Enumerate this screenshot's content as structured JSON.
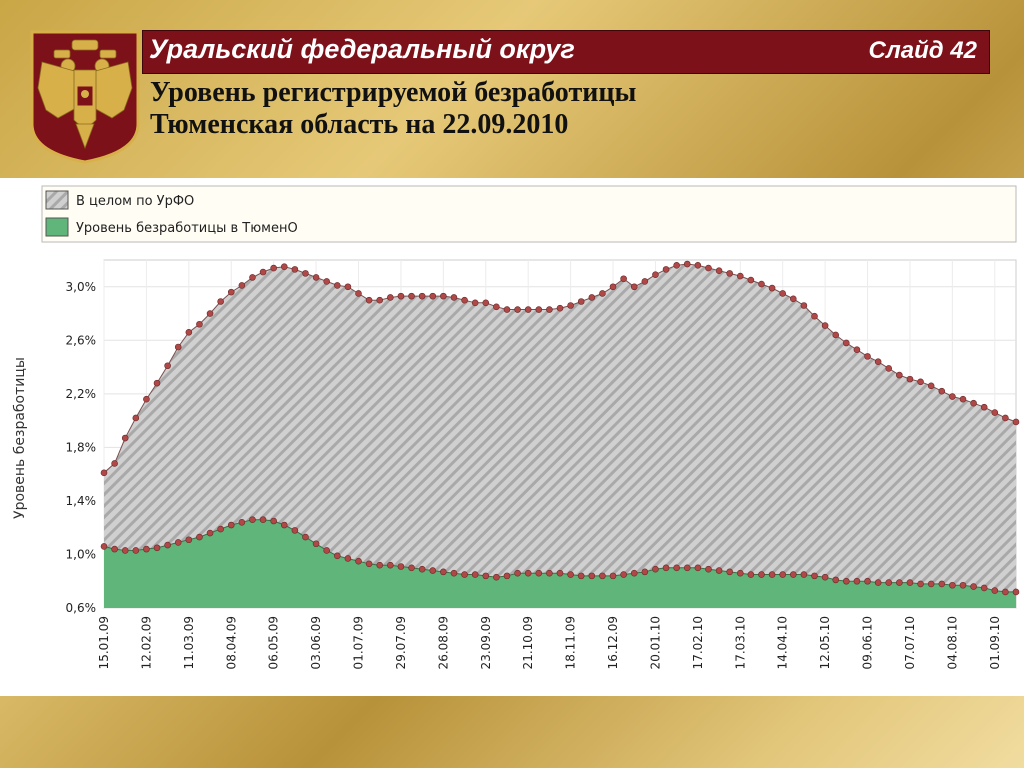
{
  "header": {
    "region_title": "Уральский федеральный округ",
    "slide_label": "Слайд 42",
    "subtitle_line1": "Уровень регистрируемой безработицы",
    "subtitle_line2": "Тюменская область на 22.09.2010"
  },
  "emblem": {
    "icon": "russian-coat-of-arms-icon",
    "background": "#7c1119",
    "foreground": "#d8b04a"
  },
  "colors": {
    "header_bar": "#7c1119",
    "urfo_fill": "#c8c8c8",
    "tyumen_fill": "#5fb57a",
    "marker": "#b04848"
  },
  "chart_data": {
    "type": "area",
    "ylabel": "Уровень безработицы",
    "ylim": [
      0.6,
      3.2
    ],
    "yticks": [
      "3,0%",
      "2,6%",
      "2,2%",
      "1,8%",
      "1,4%",
      "1,0%",
      "0,6%"
    ],
    "ytick_values": [
      3.0,
      2.6,
      2.2,
      1.8,
      1.4,
      1.0,
      0.6
    ],
    "x_tick_labels": [
      "15.01.09",
      "12.02.09",
      "11.03.09",
      "08.04.09",
      "06.05.09",
      "03.06.09",
      "01.07.09",
      "29.07.09",
      "26.08.09",
      "23.09.09",
      "21.10.09",
      "18.11.09",
      "16.12.09",
      "20.01.10",
      "17.02.10",
      "17.03.10",
      "14.04.10",
      "12.05.10",
      "09.06.10",
      "07.07.10",
      "04.08.10",
      "01.09.10"
    ],
    "legend_position": "top",
    "grid": true,
    "series": [
      {
        "name": "В целом по УрФО",
        "values": [
          1.61,
          1.68,
          1.87,
          2.02,
          2.16,
          2.28,
          2.41,
          2.55,
          2.66,
          2.72,
          2.8,
          2.89,
          2.96,
          3.01,
          3.07,
          3.11,
          3.14,
          3.15,
          3.13,
          3.1,
          3.07,
          3.04,
          3.01,
          3.0,
          2.95,
          2.9,
          2.9,
          2.92,
          2.93,
          2.93,
          2.93,
          2.93,
          2.93,
          2.92,
          2.9,
          2.88,
          2.88,
          2.85,
          2.83,
          2.83,
          2.83,
          2.83,
          2.83,
          2.84,
          2.86,
          2.89,
          2.92,
          2.95,
          3.0,
          3.06,
          3.0,
          3.04,
          3.09,
          3.13,
          3.16,
          3.17,
          3.16,
          3.14,
          3.12,
          3.1,
          3.08,
          3.05,
          3.02,
          2.99,
          2.95,
          2.91,
          2.86,
          2.78,
          2.71,
          2.64,
          2.58,
          2.53,
          2.48,
          2.44,
          2.39,
          2.34,
          2.31,
          2.29,
          2.26,
          2.22,
          2.18,
          2.16,
          2.13,
          2.1,
          2.06,
          2.02,
          1.99
        ]
      },
      {
        "name": "Уровень безработицы в ТюменО",
        "values": [
          1.06,
          1.04,
          1.03,
          1.03,
          1.04,
          1.05,
          1.07,
          1.09,
          1.11,
          1.13,
          1.16,
          1.19,
          1.22,
          1.24,
          1.26,
          1.26,
          1.25,
          1.22,
          1.18,
          1.13,
          1.08,
          1.03,
          0.99,
          0.97,
          0.95,
          0.93,
          0.92,
          0.92,
          0.91,
          0.9,
          0.89,
          0.88,
          0.87,
          0.86,
          0.85,
          0.85,
          0.84,
          0.83,
          0.84,
          0.86,
          0.86,
          0.86,
          0.86,
          0.86,
          0.85,
          0.84,
          0.84,
          0.84,
          0.84,
          0.85,
          0.86,
          0.87,
          0.89,
          0.9,
          0.9,
          0.9,
          0.9,
          0.89,
          0.88,
          0.87,
          0.86,
          0.85,
          0.85,
          0.85,
          0.85,
          0.85,
          0.85,
          0.84,
          0.83,
          0.81,
          0.8,
          0.8,
          0.8,
          0.79,
          0.79,
          0.79,
          0.79,
          0.78,
          0.78,
          0.78,
          0.77,
          0.77,
          0.76,
          0.75,
          0.73,
          0.72,
          0.72
        ]
      }
    ]
  }
}
